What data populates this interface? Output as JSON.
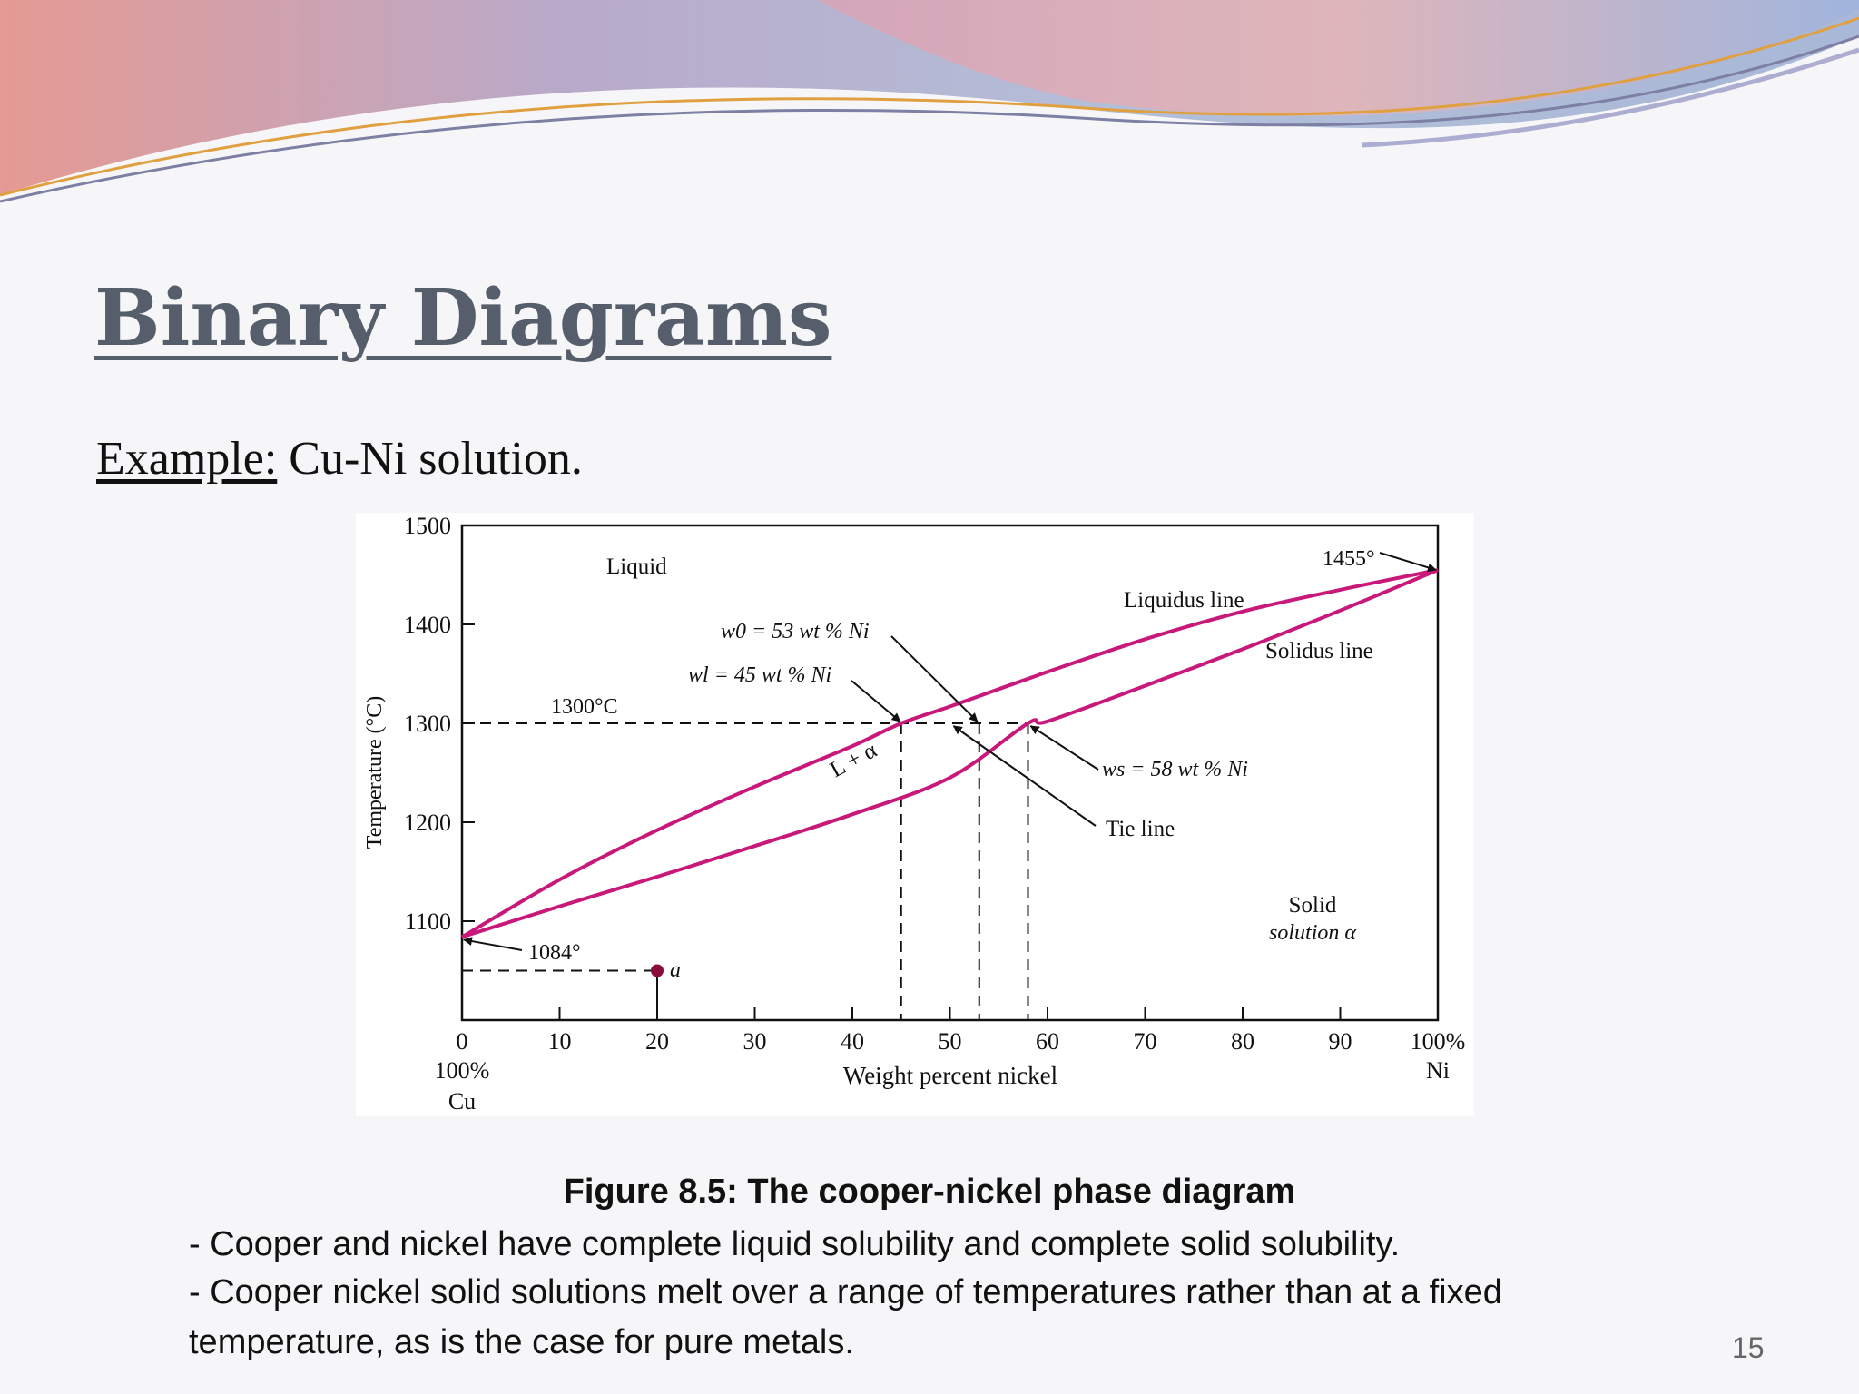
{
  "slide": {
    "title": "Binary Diagrams",
    "example_label": "Example:",
    "example_text": " Cu-Ni solution.",
    "caption": "Figure 8.5: The cooper-nickel phase diagram",
    "bullets": [
      "- Cooper and nickel have complete liquid solubility and complete solid solubility.",
      "- Cooper nickel solid solutions melt over a range of temperatures rather than at a fixed",
      "temperature, as is the case for pure metals."
    ],
    "page_number": "15"
  },
  "colors": {
    "curve": "#c8197a",
    "point": "#8b0a3c",
    "title": "#555e6a"
  },
  "chart_data": {
    "type": "line",
    "title": "",
    "xlabel": "Weight percent nickel",
    "ylabel": "Temperature (°C)",
    "xlim": [
      0,
      100
    ],
    "ylim": [
      1000,
      1500
    ],
    "x_ticks": [
      0,
      10,
      20,
      30,
      40,
      50,
      60,
      70,
      80,
      90,
      100
    ],
    "x_tick_labels": [
      "0",
      "10",
      "20",
      "30",
      "40",
      "50",
      "60",
      "70",
      "80",
      "90",
      "100%"
    ],
    "x_end_labels": {
      "left": [
        "100%",
        "Cu"
      ],
      "right": [
        "Ni"
      ]
    },
    "y_ticks": [
      1100,
      1200,
      1300,
      1400,
      1500
    ],
    "y_tick_labels": [
      "1100",
      "1200",
      "1300",
      "1400",
      "1500"
    ],
    "grid": false,
    "series": [
      {
        "name": "Liquidus line",
        "x": [
          0,
          10,
          20,
          30,
          40,
          45,
          50,
          60,
          70,
          80,
          90,
          100
        ],
        "y": [
          1084,
          1142,
          1192,
          1236,
          1277,
          1300,
          1317,
          1352,
          1385,
          1413,
          1435,
          1455
        ]
      },
      {
        "name": "Solidus line",
        "x": [
          0,
          10,
          20,
          30,
          40,
          50,
          58,
          60,
          70,
          80,
          90,
          100
        ],
        "y": [
          1084,
          1115,
          1145,
          1176,
          1208,
          1245,
          1300,
          1302,
          1338,
          1375,
          1414,
          1455
        ]
      }
    ],
    "annotations": {
      "region_liquid": "Liquid",
      "region_two_phase": "L + α",
      "region_solid_1": "Solid",
      "region_solid_2": "solution α",
      "temp_1300": "1300°C",
      "melt_ni": "1455°",
      "melt_cu": "1084°",
      "w0": "w0 = 53 wt % Ni",
      "wl": "wl = 45 wt % Ni",
      "ws": "ws = 58 wt % Ni",
      "tie_line": "Tie line",
      "point_a": "a"
    },
    "tie_line": {
      "temperature": 1300,
      "x": [
        45,
        58
      ]
    },
    "compositions": {
      "w0": 53,
      "wl": 45,
      "ws": 58
    },
    "point_a": {
      "x": 20,
      "y": 1050
    }
  }
}
